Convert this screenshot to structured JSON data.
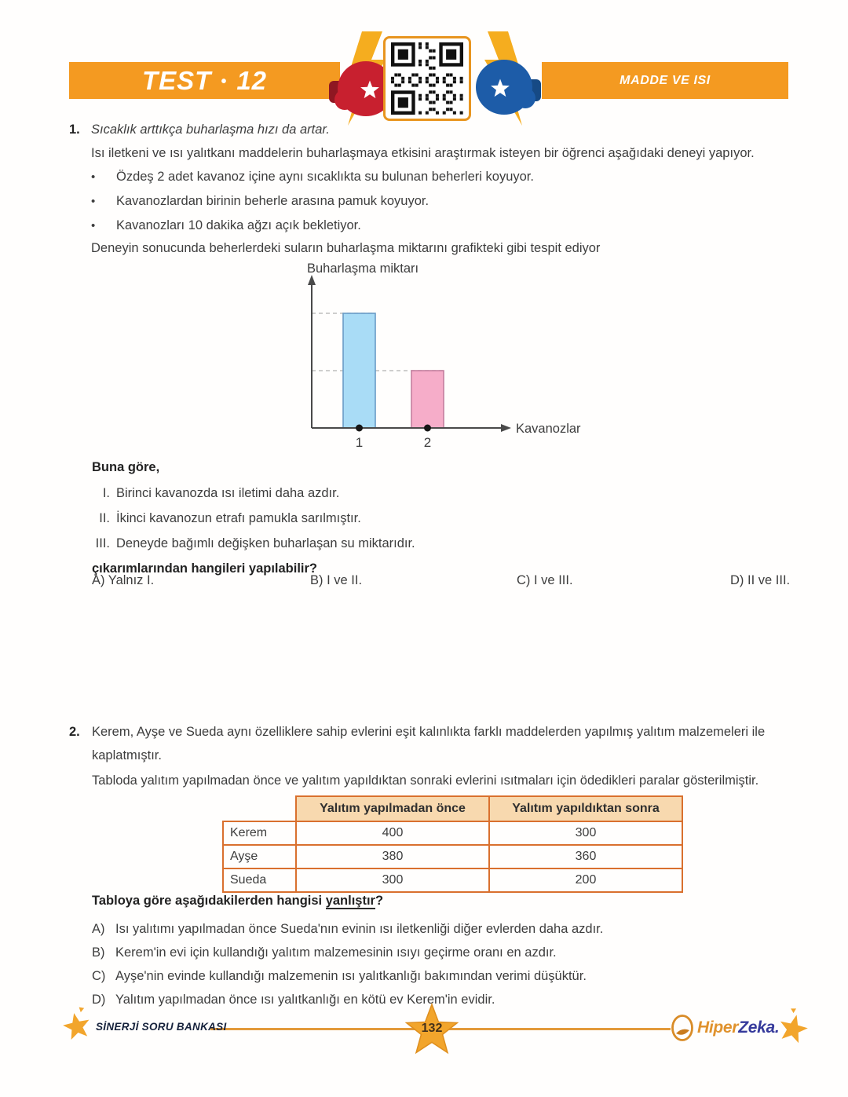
{
  "header": {
    "test_label": "TEST",
    "test_separator": "•",
    "test_number": "12",
    "subject": "MADDE VE ISI"
  },
  "icons": {
    "header_left": "red-boxing-glove",
    "header_center": "qr-code",
    "header_right": "blue-boxing-glove",
    "header_flash": "lightning-bolt",
    "footer_left": "shooting-star",
    "footer_center": "star-page-badge",
    "footer_logo": "egg-leaf",
    "footer_right": "star"
  },
  "colors": {
    "banner_orange": "#F49A21",
    "qr_border": "#E8951F",
    "bolt_yellow": "#F5AD1F",
    "glove_red": "#C8202F",
    "glove_blue": "#1D5CA8",
    "table_border": "#D9702E",
    "table_header_bg": "#F8D9AF",
    "footer_line": "#E39A3A",
    "star_orange": "#F2A52C",
    "logo_hiper": "#E0922D",
    "logo_zeka": "#35399B"
  },
  "q1": {
    "number": "1.",
    "intro": "Sıcaklık arttıkça buharlaşma hızı da artar.",
    "paragraph": "Isı iletkeni ve ısı yalıtkanı maddelerin buharlaşmaya etkisini araştırmak isteyen bir öğrenci aşağıdaki deneyi yapıyor.",
    "bullets": [
      "Özdeş 2 adet kavanoz içine aynı sıcaklıkta su bulunan beherleri koyuyor.",
      "Kavanozlardan birinin beherle arasına pamuk koyuyor.",
      "Kavanozları 10 dakika ağzı açık bekletiyor."
    ],
    "closing": "Deneyin sonucunda beherlerdeki suların buharlaşma miktarını grafikteki gibi tespit ediyor",
    "lead_in": "Buna göre,",
    "statements": [
      {
        "label": "I.",
        "text": "Birinci kavanozda ısı iletimi daha azdır."
      },
      {
        "label": "II.",
        "text": "İkinci kavanozun etrafı pamukla sarılmıştır."
      },
      {
        "label": "III.",
        "text": "Deneyde bağımlı değişken buharlaşan su miktarıdır."
      }
    ],
    "stem": "çıkarımlarından hangileri yapılabilir?",
    "options": [
      {
        "label": "A)",
        "text": "Yalnız I."
      },
      {
        "label": "B)",
        "text": "I ve II."
      },
      {
        "label": "C)",
        "text": "I ve III."
      },
      {
        "label": "D)",
        "text": "II ve III."
      }
    ]
  },
  "chart_data": {
    "type": "bar",
    "title": "",
    "ylabel": "Buharlaşma miktarı",
    "xlabel": "Kavanozlar",
    "categories": [
      "1",
      "2"
    ],
    "values": [
      2,
      1
    ],
    "value_note": "no numeric scale shown; bar for kavanoz 1 is about twice the height of bar for kavanoz 2",
    "ylim": [
      0,
      2.6
    ],
    "grid": "off",
    "guides": "dashed horizontal lines from y-axis to each bar top",
    "markers": "black dots on x-axis at bar centers",
    "legend": "none",
    "bar_fills": [
      "#A9DCF6",
      "#F6ADC9"
    ],
    "bar_strokes": [
      "#699CC6",
      "#C47F9F"
    ]
  },
  "q2": {
    "number": "2.",
    "paragraph1": "Kerem, Ayşe ve Sueda aynı özelliklere sahip evlerini eşit kalınlıkta farklı maddelerden yapılmış yalıtım malzemeleri ile kaplatmıştır.",
    "paragraph2": "Tabloda yalıtım yapılmadan önce ve yalıtım yapıldıktan sonraki evlerini ısıtmaları için ödedikleri paralar gösterilmiştir.",
    "table": {
      "col_before": "Yalıtım yapılmadan önce",
      "col_after": "Yalıtım yapıldıktan sonra",
      "rows": [
        {
          "name": "Kerem",
          "before": "400",
          "after": "300"
        },
        {
          "name": "Ayşe",
          "before": "380",
          "after": "360"
        },
        {
          "name": "Sueda",
          "before": "300",
          "after": "200"
        }
      ]
    },
    "stem_prefix": "Tabloya göre aşağıdakilerden hangisi ",
    "stem_underlined": "yanlıştır",
    "stem_suffix": "?",
    "options": [
      {
        "label": "A)",
        "text": "Isı yalıtımı yapılmadan önce Sueda'nın evinin ısı iletkenliği diğer evlerden daha azdır."
      },
      {
        "label": "B)",
        "text": "Kerem'in evi için kullandığı yalıtım malzemesinin ısıyı geçirme oranı en azdır."
      },
      {
        "label": "C)",
        "text": "Ayşe'nin evinde kullandığı malzemenin ısı yalıtkanlığı bakımından verimi düşüktür."
      },
      {
        "label": "D)",
        "text": "Yalıtım yapılmadan önce ısı yalıtkanlığı en kötü ev Kerem'in evidir."
      }
    ]
  },
  "footer": {
    "brand_left": "SİNERJİ SORU BANKASI",
    "page_number": "132",
    "logo_part1": "Hiper",
    "logo_part2": "Zeka",
    "logo_suffix": "."
  }
}
